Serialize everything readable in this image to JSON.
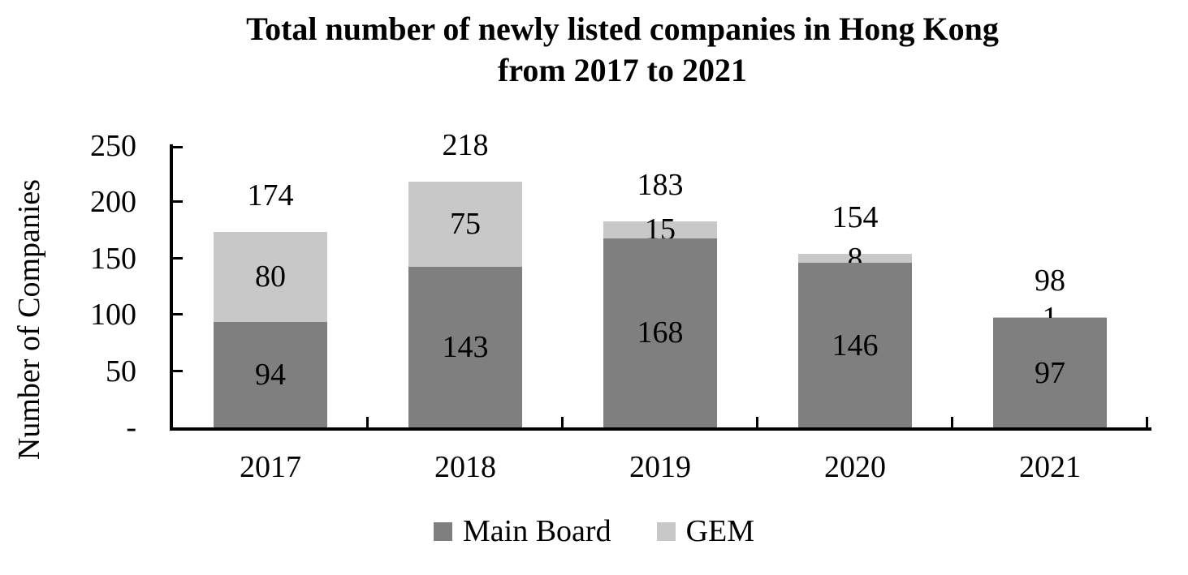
{
  "title": {
    "lines": [
      "Total number of newly listed companies in Hong Kong",
      "from 2017 to 2021"
    ]
  },
  "chart_data": {
    "type": "bar",
    "stacked": true,
    "title": "Total number of newly listed companies in Hong Kong from 2017 to 2021",
    "xlabel": "",
    "ylabel": "Number of Companies",
    "categories": [
      "2017",
      "2018",
      "2019",
      "2020",
      "2021"
    ],
    "series": [
      {
        "name": "Main Board",
        "color": "#7f7f7f",
        "values": [
          94,
          143,
          168,
          146,
          97
        ]
      },
      {
        "name": "GEM",
        "color": "#c8c8c8",
        "values": [
          80,
          75,
          15,
          8,
          1
        ]
      }
    ],
    "total_labels": [
      "174",
      "218",
      "183",
      "154",
      "98"
    ],
    "ylim": [
      0,
      250
    ],
    "y_ticks": [
      {
        "value": 0,
        "label": "-"
      },
      {
        "value": 50,
        "label": "50"
      },
      {
        "value": 100,
        "label": "100"
      },
      {
        "value": 150,
        "label": "150"
      },
      {
        "value": 200,
        "label": "200"
      },
      {
        "value": 250,
        "label": "250"
      }
    ],
    "grid": false,
    "legend_position": "bottom",
    "text_color": "#000000",
    "axis_color": "#000000"
  }
}
